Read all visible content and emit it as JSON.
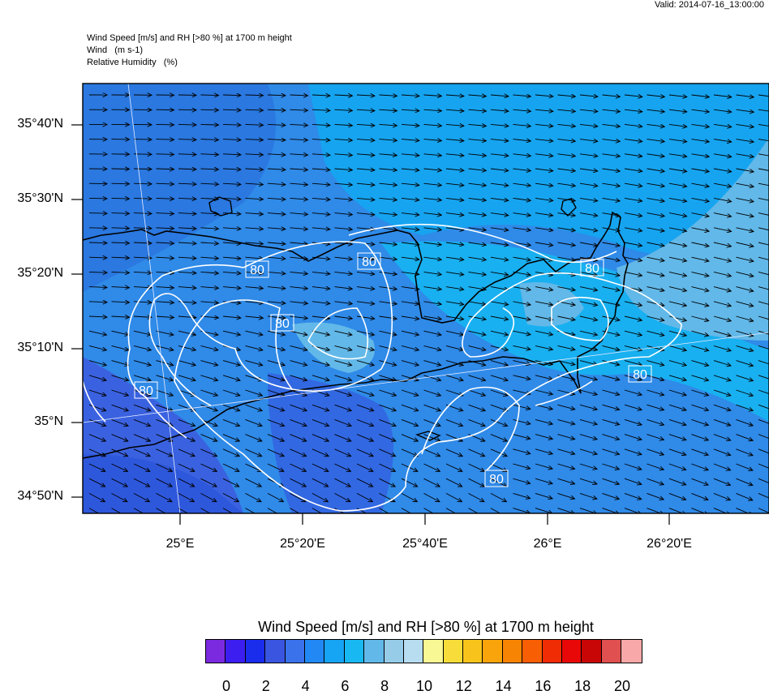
{
  "valid": "Valid: 2014-07-16_13:00:00",
  "header": {
    "line1": "Wind Speed [m/s] and RH [>80 %] at 1700 m height",
    "line2": "Wind   (m s-1)",
    "line3": "Relative Humidity   (%)"
  },
  "lat_labels": [
    "35°40'N",
    "35°30'N",
    "35°20'N",
    "35°10'N",
    "35°N",
    "34°50'N"
  ],
  "lon_labels": [
    "25°E",
    "25°20'E",
    "25°40'E",
    "26°E",
    "26°20'E"
  ],
  "contour_labels": [
    "80",
    "80",
    "80",
    "80",
    "80",
    "80",
    "80"
  ],
  "colorbar": {
    "title": "Wind Speed [m/s] and RH [>80 %] at 1700 m height",
    "labels": [
      "0",
      "2",
      "4",
      "6",
      "8",
      "10",
      "12",
      "14",
      "16",
      "18",
      "20"
    ],
    "colors": [
      "#7b2ae0",
      "#3c1ef0",
      "#1a2cec",
      "#3a55e0",
      "#3a72ec",
      "#2288f4",
      "#16a4f4",
      "#18b8f2",
      "#62b8e8",
      "#96cce8",
      "#b8dcf0",
      "#f8f894",
      "#f8dc3a",
      "#f8c41c",
      "#f8a40a",
      "#f88404",
      "#f85e04",
      "#f02c04",
      "#e80808",
      "#c80606",
      "#e05050",
      "#f8a8a8"
    ]
  }
}
